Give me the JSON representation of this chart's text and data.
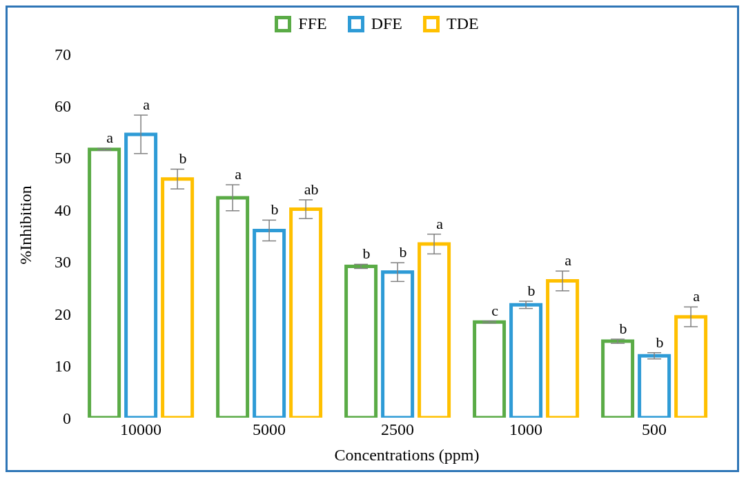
{
  "chart_data": {
    "type": "bar",
    "xlabel": "Concentrations (ppm)",
    "ylabel": "%Inhibition",
    "categories": [
      "10000",
      "5000",
      "2500",
      "1000",
      "500"
    ],
    "series": [
      {
        "name": "FFE",
        "color": "#5aab46",
        "values": [
          51.6,
          42.3,
          29.1,
          18.4,
          14.7
        ],
        "errors": [
          0.2,
          2.5,
          0.4,
          0.2,
          0.4
        ]
      },
      {
        "name": "DFE",
        "color": "#2e9bd6",
        "values": [
          54.5,
          36.0,
          28.0,
          21.7,
          11.9
        ],
        "errors": [
          3.7,
          2.0,
          1.8,
          0.7,
          0.6
        ]
      },
      {
        "name": "TDE",
        "color": "#ffc000",
        "values": [
          45.9,
          40.1,
          33.4,
          26.3,
          19.4
        ],
        "errors": [
          1.9,
          1.8,
          1.9,
          1.9,
          1.9
        ]
      }
    ],
    "ylim": [
      0,
      70
    ],
    "yticks": [
      0,
      10,
      20,
      30,
      40,
      50,
      60,
      70
    ],
    "grid": false,
    "legend": "top",
    "annotations": [
      "a",
      "a",
      "b",
      "a",
      "b",
      "ab",
      "b",
      "b",
      "a",
      "c",
      "b",
      "a",
      "b",
      "b",
      "a"
    ]
  }
}
